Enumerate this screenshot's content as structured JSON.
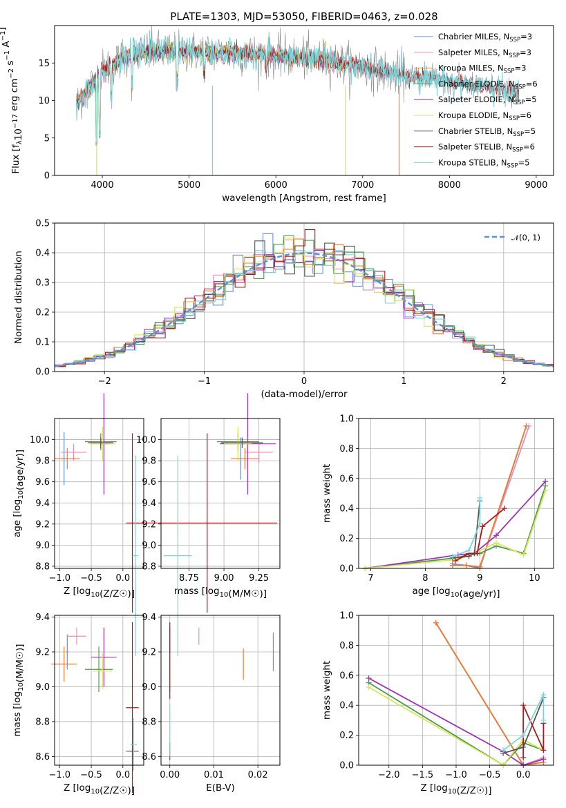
{
  "title": "PLATE=1303, MJD=53050, FIBERID=0463, z=0.028",
  "colors": {
    "Chabrier MILES": "#6a8fd0",
    "Salpeter MILES": "#e98fb1",
    "Kroupa MILES": "#ec7d2e",
    "Chabrier ELODIE": "#4b9b4b",
    "Salpeter ELODIE": "#9b34b8",
    "Kroupa ELODIE": "#d8e65a",
    "Chabrier STELIB": "#545454",
    "Salpeter STELIB": "#b0171c",
    "Kroupa STELIB": "#7fd3d6"
  },
  "chart_data": [
    {
      "id": "spectrum",
      "type": "line",
      "xlabel": "wavelength [Angstrom, rest frame]",
      "ylabel": "Flux [f_λ10^-17 erg cm^-2 s^-1 A^-1]",
      "xlim": [
        3450,
        9200
      ],
      "ylim": [
        0,
        20
      ],
      "xticks": [
        "4000",
        "5000",
        "6000",
        "7000",
        "8000",
        "9000"
      ],
      "yticks": [
        "0",
        "5",
        "10",
        "15"
      ],
      "legend_position": "top-right",
      "legend": [
        {
          "label": "Chabrier MILES, N",
          "sub": "SSP",
          "tail": "=3"
        },
        {
          "label": "Salpeter MILES, N",
          "sub": "SSP",
          "tail": "=3"
        },
        {
          "label": "Kroupa MILES, N",
          "sub": "SSP",
          "tail": "=3"
        },
        {
          "label": "Chabrier ELODIE, N",
          "sub": "SSP",
          "tail": "=6"
        },
        {
          "label": "Salpeter ELODIE, N",
          "sub": "SSP",
          "tail": "=5"
        },
        {
          "label": "Kroupa ELODIE, N",
          "sub": "SSP",
          "tail": "=6"
        },
        {
          "label": "Chabrier STELIB, N",
          "sub": "SSP",
          "tail": "=5"
        },
        {
          "label": "Salpeter STELIB, N",
          "sub": "SSP",
          "tail": "=6"
        },
        {
          "label": "Kroupa STELIB, N",
          "sub": "SSP",
          "tail": "=5"
        }
      ],
      "data_envelope": {
        "x": [
          3700,
          3900,
          4000,
          4300,
          4500,
          5000,
          5500,
          6000,
          6500,
          7000,
          7400,
          7500,
          7800,
          8000,
          8500,
          8800
        ],
        "y": [
          9.5,
          12.5,
          14.0,
          16.0,
          16.5,
          16.5,
          16.3,
          16.0,
          15.5,
          14.5,
          13.5,
          13.2,
          13.0,
          12.5,
          11.7,
          11.0
        ]
      },
      "grid": false
    },
    {
      "id": "residuals",
      "type": "histogram",
      "xlabel": "(data-model)/error",
      "ylabel": "Normed distribution",
      "xlim": [
        -2.5,
        2.5
      ],
      "ylim": [
        0,
        0.5
      ],
      "xticks": [
        "−2",
        "−1",
        "0",
        "1",
        "2"
      ],
      "yticks": [
        "0.0",
        "0.1",
        "0.2",
        "0.3",
        "0.4",
        "0.5"
      ],
      "legend": [
        "𝒩(0, 1)"
      ],
      "legend_position": "top-right",
      "reference_curve": "standard normal pdf",
      "bin_width": 0.1,
      "grid": true
    },
    {
      "id": "age_vs_Z",
      "type": "errorbar",
      "xlabel": "Z [log10(Z/Z☉)]",
      "ylabel": "age  [log10(age/yr)]",
      "xlim": [
        -1.08,
        0.33
      ],
      "ylim": [
        8.78,
        10.2
      ],
      "xticks": [
        "−1.0",
        "−0.5",
        "0.0"
      ],
      "yticks": [
        "8.8",
        "9.0",
        "9.2",
        "9.4",
        "9.6",
        "9.8",
        "10.0"
      ],
      "grid": true,
      "points": [
        {
          "series": "Chabrier MILES",
          "x": -0.93,
          "xerr": 0.05,
          "y": 9.82,
          "yerr": 0.25
        },
        {
          "series": "Salpeter MILES",
          "x": -0.78,
          "xerr": 0.2,
          "y": 9.88,
          "yerr": 0.08
        },
        {
          "series": "Kroupa MILES",
          "x": -0.88,
          "xerr": 0.2,
          "y": 9.82,
          "yerr": 0.1
        },
        {
          "series": "Chabrier ELODIE",
          "x": -0.35,
          "xerr": 0.25,
          "y": 9.98,
          "yerr": 0.08
        },
        {
          "series": "Salpeter ELODIE",
          "x": -0.3,
          "xerr": 0.07,
          "y": 9.96,
          "yerr": 0.48
        },
        {
          "series": "Kroupa ELODIE",
          "x": -0.32,
          "xerr": 0.2,
          "y": 9.96,
          "yerr": 0.16
        },
        {
          "series": "Chabrier STELIB",
          "x": -0.35,
          "xerr": 0.2,
          "y": 9.97,
          "yerr": 0.05
        },
        {
          "series": "Salpeter STELIB",
          "x": 0.15,
          "xerr": 0.1,
          "y": 9.21,
          "yerr": 0.85
        },
        {
          "series": "Kroupa STELIB",
          "x": 0.2,
          "xerr": 0.05,
          "y": 8.9,
          "yerr": 0.95
        }
      ]
    },
    {
      "id": "age_vs_mass",
      "type": "errorbar",
      "xlabel": "mass [log10(M/M☉)]",
      "ylabel": "",
      "xlim": [
        8.55,
        9.4
      ],
      "ylim": [
        8.78,
        10.2
      ],
      "xticks": [
        "8.75",
        "9.00",
        "9.25"
      ],
      "yticks": [
        "8.8",
        "9.0",
        "9.2",
        "9.4",
        "9.6",
        "9.8",
        "10.0"
      ],
      "grid": true,
      "points": [
        {
          "series": "Chabrier MILES",
          "x": 9.12,
          "xerr": 0.04,
          "y": 9.82,
          "yerr": 0.2
        },
        {
          "series": "Salpeter MILES",
          "x": 9.25,
          "xerr": 0.1,
          "y": 9.88,
          "yerr": 0.1
        },
        {
          "series": "Kroupa MILES",
          "x": 9.15,
          "xerr": 0.1,
          "y": 9.82,
          "yerr": 0.1
        },
        {
          "series": "Chabrier ELODIE",
          "x": 9.1,
          "xerr": 0.15,
          "y": 9.98,
          "yerr": 0.08
        },
        {
          "series": "Salpeter ELODIE",
          "x": 9.17,
          "xerr": 0.2,
          "y": 9.96,
          "yerr": 0.48
        },
        {
          "series": "Kroupa ELODIE",
          "x": 9.1,
          "xerr": 0.1,
          "y": 9.96,
          "yerr": 0.16
        },
        {
          "series": "Chabrier STELIB",
          "x": 9.13,
          "xerr": 0.15,
          "y": 9.97,
          "yerr": 0.05
        },
        {
          "series": "Salpeter STELIB",
          "x": 8.88,
          "xerr": 0.5,
          "y": 9.21,
          "yerr": 0.85
        },
        {
          "series": "Kroupa STELIB",
          "x": 8.67,
          "xerr": 0.1,
          "y": 8.9,
          "yerr": 0.95
        }
      ]
    },
    {
      "id": "weight_vs_age",
      "type": "line",
      "xlabel": "age  [log10(age/yr)]",
      "ylabel": "mass weight",
      "xlim": [
        6.78,
        10.35
      ],
      "ylim": [
        0,
        1
      ],
      "xticks": [
        "7",
        "8",
        "9",
        "10"
      ],
      "yticks": [
        "0.0",
        "0.2",
        "0.4",
        "0.6",
        "0.8",
        "1.0"
      ],
      "grid": true,
      "series": [
        {
          "name": "Chabrier MILES",
          "x": [
            8.5,
            8.75,
            9.0,
            9.85
          ],
          "y": [
            0.03,
            0.02,
            0.0,
            0.95
          ]
        },
        {
          "name": "Salpeter MILES",
          "x": [
            8.5,
            8.75,
            9.0,
            9.9
          ],
          "y": [
            0.02,
            0.02,
            0.01,
            0.95
          ]
        },
        {
          "name": "Kroupa MILES",
          "x": [
            8.5,
            8.75,
            9.0,
            9.85
          ],
          "y": [
            0.02,
            0.02,
            0.01,
            0.95
          ]
        },
        {
          "name": "Chabrier ELODIE",
          "x": [
            6.9,
            8.55,
            8.8,
            9.0,
            9.3,
            9.8,
            10.2
          ],
          "y": [
            0.0,
            0.07,
            0.09,
            0.1,
            0.15,
            0.1,
            0.55
          ]
        },
        {
          "name": "Salpeter ELODIE",
          "x": [
            6.9,
            8.6,
            8.9,
            9.3,
            10.2
          ],
          "y": [
            0.0,
            0.09,
            0.1,
            0.22,
            0.58
          ]
        },
        {
          "name": "Kroupa ELODIE",
          "x": [
            6.9,
            8.6,
            8.9,
            9.3,
            9.8,
            10.2
          ],
          "y": [
            0.0,
            0.06,
            0.1,
            0.17,
            0.09,
            0.52
          ]
        },
        {
          "name": "Chabrier STELIB",
          "x": [
            8.5,
            8.8,
            8.9,
            9.0
          ],
          "y": [
            0.07,
            0.08,
            0.1,
            0.45
          ]
        },
        {
          "name": "Salpeter STELIB",
          "x": [
            8.55,
            8.8,
            8.95,
            9.05,
            9.45
          ],
          "y": [
            0.05,
            0.1,
            0.1,
            0.28,
            0.4
          ]
        },
        {
          "name": "Kroupa STELIB",
          "x": [
            8.5,
            8.8,
            9.0,
            9.0
          ],
          "y": [
            0.08,
            0.12,
            0.3,
            0.47
          ]
        }
      ]
    },
    {
      "id": "mass_vs_Z",
      "type": "errorbar",
      "xlabel": "Z [log10(Z/Z☉)]",
      "ylabel": "mass [log10(M/M☉)]",
      "xlim": [
        -1.08,
        0.33
      ],
      "ylim": [
        8.55,
        9.41
      ],
      "xticks": [
        "−1.0",
        "−0.5",
        "0.0"
      ],
      "yticks": [
        "8.6",
        "8.8",
        "9.0",
        "9.2",
        "9.4"
      ],
      "grid": true,
      "points": [
        {
          "series": "Chabrier MILES",
          "x": -0.88,
          "xerr": 0.02,
          "y": 9.2,
          "yerr": 0.1
        },
        {
          "series": "Salpeter MILES",
          "x": -0.73,
          "xerr": 0.15,
          "y": 9.29,
          "yerr": 0.05
        },
        {
          "series": "Kroupa MILES",
          "x": -0.93,
          "xerr": 0.2,
          "y": 9.13,
          "yerr": 0.1
        },
        {
          "series": "Chabrier ELODIE",
          "x": -0.38,
          "xerr": 0.22,
          "y": 9.1,
          "yerr": 0.13
        },
        {
          "series": "Salpeter ELODIE",
          "x": -0.3,
          "xerr": 0.2,
          "y": 9.17,
          "yerr": 0.17
        },
        {
          "series": "Kroupa ELODIE",
          "x": -0.32,
          "xerr": 0.15,
          "y": 9.09,
          "yerr": 0.1
        },
        {
          "series": "Chabrier STELIB",
          "x": 0.15,
          "xerr": 0.1,
          "y": 8.63,
          "yerr": 0.05
        },
        {
          "series": "Salpeter STELIB",
          "x": 0.15,
          "xerr": 0.1,
          "y": 8.88,
          "yerr": 0.49
        },
        {
          "series": "Kroupa STELIB",
          "x": 0.17,
          "xerr": 0.05,
          "y": 8.67,
          "yerr": 0.15
        }
      ]
    },
    {
      "id": "mass_vs_ebv",
      "type": "errorbar",
      "xlabel": "E(B-V)",
      "ylabel": "",
      "xlim": [
        -0.002,
        0.025
      ],
      "ylim": [
        8.55,
        9.41
      ],
      "xticks": [
        "0.00",
        "0.01",
        "0.02"
      ],
      "yticks": [
        "8.6",
        "8.8",
        "9.0",
        "9.2",
        "9.4"
      ],
      "grid": true,
      "points": [
        {
          "series": "Chabrier MILES",
          "x": 0.0235,
          "xerr": 0,
          "y": 9.2,
          "yerr": 0.11
        },
        {
          "series": "Salpeter MILES",
          "x": 0.0066,
          "xerr": 0,
          "y": 9.29,
          "yerr": 0.05
        },
        {
          "series": "Kroupa MILES",
          "x": 0.0167,
          "xerr": 0,
          "y": 9.13,
          "yerr": 0.09
        },
        {
          "series": "Chabrier ELODIE",
          "x": 0.0,
          "xerr": 0,
          "y": 9.1,
          "yerr": 0.13
        },
        {
          "series": "Salpeter ELODIE",
          "x": 0.0,
          "xerr": 0,
          "y": 9.17,
          "yerr": 0.17
        },
        {
          "series": "Kroupa ELODIE",
          "x": 0.0,
          "xerr": 0,
          "y": 9.09,
          "yerr": 0.1
        },
        {
          "series": "Chabrier STELIB",
          "x": 0.0,
          "xerr": 0,
          "y": 8.63,
          "yerr": 0.05
        },
        {
          "series": "Salpeter STELIB",
          "x": 0.0,
          "xerr": 0,
          "y": 9.15,
          "yerr": 0.22
        },
        {
          "series": "Kroupa STELIB",
          "x": 0.0,
          "xerr": 0,
          "y": 8.75,
          "yerr": 0.15
        }
      ]
    },
    {
      "id": "weight_vs_Z",
      "type": "line",
      "xlabel": "Z [log10(Z/Z☉)]",
      "ylabel": "mass weight",
      "xlim": [
        -2.45,
        0.45
      ],
      "ylim": [
        0,
        1
      ],
      "xticks": [
        "−2.0",
        "−1.5",
        "−1.0",
        "−0.5",
        "0.0"
      ],
      "yticks": [
        "0.0",
        "0.2",
        "0.4",
        "0.6",
        "0.8",
        "1.0"
      ],
      "grid": true,
      "series": [
        {
          "name": "Chabrier MILES",
          "x": [
            -1.3,
            0.0,
            0.3
          ],
          "y": [
            0.95,
            0.0,
            0.04
          ]
        },
        {
          "name": "Salpeter MILES",
          "x": [
            -1.3,
            0.0,
            0.3
          ],
          "y": [
            0.95,
            0.0,
            0.05
          ]
        },
        {
          "name": "Kroupa MILES",
          "x": [
            -1.3,
            0.0,
            0.3
          ],
          "y": [
            0.95,
            0.0,
            0.02
          ]
        },
        {
          "name": "Chabrier ELODIE",
          "x": [
            -2.3,
            -0.3,
            0.0,
            0.3
          ],
          "y": [
            0.55,
            0.0,
            0.15,
            0.1
          ]
        },
        {
          "name": "Salpeter ELODIE",
          "x": [
            -2.3,
            -0.3,
            0.0,
            0.3
          ],
          "y": [
            0.58,
            0.09,
            0.0,
            0.04
          ]
        },
        {
          "name": "Kroupa ELODIE",
          "x": [
            -2.3,
            -0.3,
            0.0,
            0.3
          ],
          "y": [
            0.52,
            0.0,
            0.17,
            0.1
          ]
        },
        {
          "name": "Chabrier STELIB",
          "x": [
            -0.3,
            0.0,
            0.3
          ],
          "y": [
            0.08,
            0.12,
            0.45
          ]
        },
        {
          "name": "Salpeter STELIB",
          "x": [
            0.0,
            0.0,
            0.3,
            0.3
          ],
          "y": [
            0.05,
            0.4,
            0.1,
            0.28
          ]
        },
        {
          "name": "Kroupa STELIB",
          "x": [
            -0.3,
            0.0,
            0.3,
            0.3
          ],
          "y": [
            0.1,
            0.2,
            0.47,
            0.3
          ]
        }
      ]
    }
  ]
}
